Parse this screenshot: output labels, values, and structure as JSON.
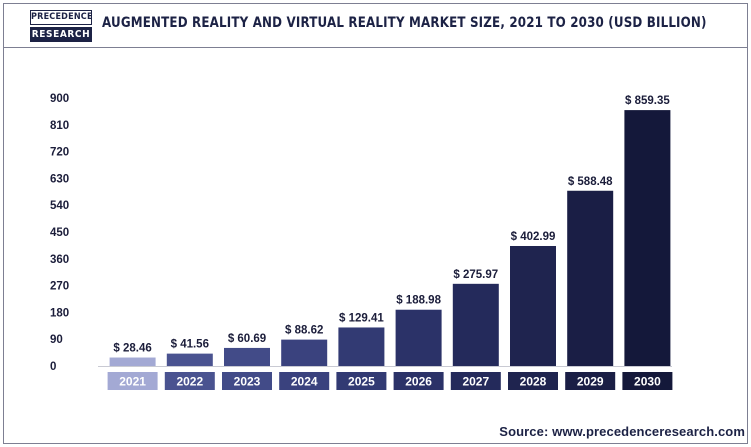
{
  "header": {
    "logo_top": "PRECEDENCE",
    "logo_bottom": "RESEARCH",
    "title": "AUGMENTED REALITY AND VIRTUAL REALITY MARKET SIZE, 2021 TO 2030 (USD BILLION)"
  },
  "footer": {
    "source": "Source: www.precedenceresearch.com"
  },
  "chart_data": {
    "type": "bar",
    "title": "AUGMENTED REALITY AND VIRTUAL REALITY MARKET SIZE, 2021 TO 2030 (USD BILLION)",
    "categories": [
      "2021",
      "2022",
      "2023",
      "2024",
      "2025",
      "2026",
      "2027",
      "2028",
      "2029",
      "2030"
    ],
    "values": [
      28.46,
      41.56,
      60.69,
      88.62,
      129.41,
      188.98,
      275.97,
      402.99,
      588.48,
      859.35
    ],
    "data_labels": [
      "$ 28.46",
      "$ 41.56",
      "$ 60.69",
      "$ 88.62",
      "$ 129.41",
      "$ 188.98",
      "$ 275.97",
      "$ 402.99",
      "$ 588.48",
      "$ 859.35"
    ],
    "yticks": [
      0,
      90,
      180,
      270,
      360,
      450,
      540,
      630,
      720,
      810,
      900
    ],
    "ylim": [
      0,
      900
    ],
    "grid": false,
    "legend": "none",
    "colors": [
      "#a3a9d4",
      "#4a5390",
      "#424b88",
      "#3a427e",
      "#323a73",
      "#2b3268",
      "#242a5b",
      "#1f244f",
      "#1a1e45",
      "#14183a"
    ]
  }
}
